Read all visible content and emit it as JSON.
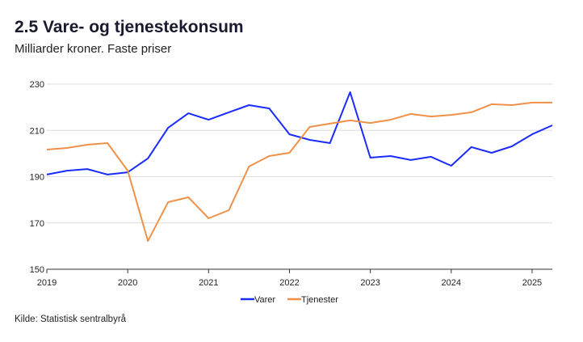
{
  "title": "2.5 Vare- og tjenestekonsum",
  "subtitle": "Milliarder kroner. Faste priser",
  "source": "Kilde: Statistisk sentralbyrå",
  "chart_data": {
    "type": "line",
    "title": "2.5 Vare- og tjenestekonsum",
    "ylabel": "",
    "xlabel": "",
    "ylim": [
      150,
      230
    ],
    "yticks": [
      150,
      170,
      190,
      210,
      230
    ],
    "xlim": [
      2019,
      2025.25
    ],
    "xticks": [
      "2019",
      "2020",
      "2021",
      "2022",
      "2023",
      "2024",
      "2025"
    ],
    "grid": "horizontal",
    "legend": "bottom",
    "x": [
      "2019Q1",
      "2019Q2",
      "2019Q3",
      "2019Q4",
      "2020Q1",
      "2020Q2",
      "2020Q3",
      "2020Q4",
      "2021Q1",
      "2021Q2",
      "2021Q3",
      "2021Q4",
      "2022Q1",
      "2022Q2",
      "2022Q3",
      "2022Q4",
      "2023Q1",
      "2023Q2",
      "2023Q3",
      "2023Q4",
      "2024Q1",
      "2024Q2",
      "2024Q3",
      "2024Q4",
      "2025Q1",
      "2025Q2"
    ],
    "series": [
      {
        "name": "Varer",
        "color": "#1a2cff",
        "values": [
          190.9,
          192.6,
          193.3,
          190.9,
          191.9,
          197.9,
          211.1,
          217.4,
          214.6,
          217.8,
          220.9,
          219.5,
          208.3,
          205.9,
          204.5,
          226.5,
          198.2,
          198.9,
          197.2,
          198.6,
          194.7,
          202.8,
          200.3,
          203.1,
          208.3,
          212.2
        ]
      },
      {
        "name": "Tjenester",
        "color": "#f0914a",
        "values": [
          201.7,
          202.4,
          203.8,
          204.5,
          192.6,
          162.2,
          179.0,
          181.1,
          172.0,
          175.5,
          194.4,
          198.9,
          200.3,
          211.5,
          212.9,
          214.3,
          213.2,
          214.6,
          217.1,
          216.0,
          216.7,
          217.8,
          221.3,
          220.9,
          222.0,
          222.0
        ]
      }
    ]
  }
}
